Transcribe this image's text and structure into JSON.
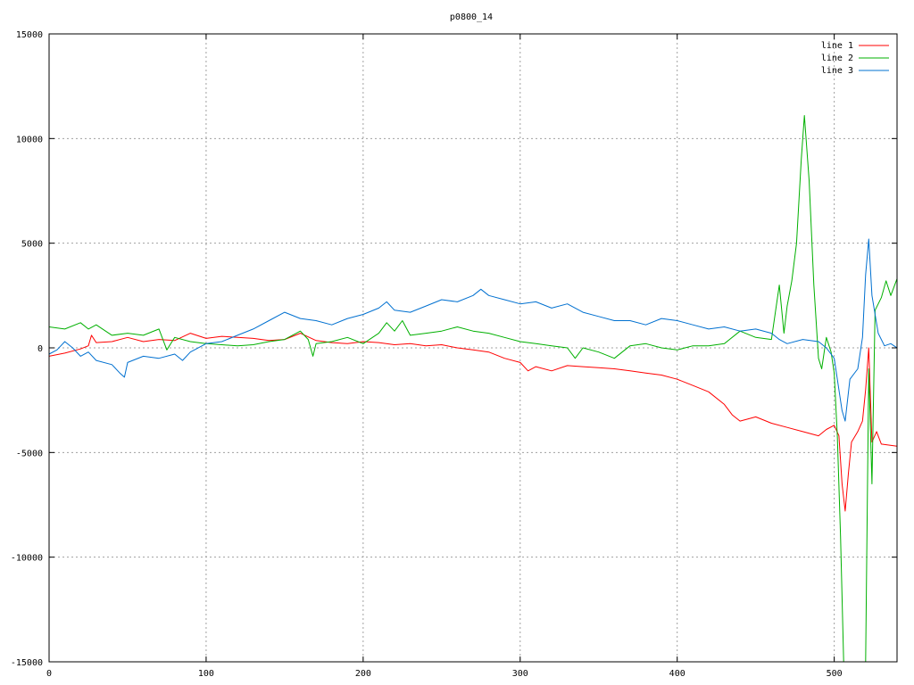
{
  "chart_data": {
    "type": "line",
    "title": "p0800_14",
    "xlabel": "",
    "ylabel": "",
    "xlim": [
      0,
      540
    ],
    "ylim": [
      -15000,
      15000
    ],
    "grid": true,
    "legend_position": "top-right",
    "x_ticks": [
      0,
      100,
      200,
      300,
      400,
      500
    ],
    "y_ticks": [
      -15000,
      -10000,
      -5000,
      0,
      5000,
      10000,
      15000
    ],
    "x_tick_labels": [
      "0",
      "100",
      "200",
      "300",
      "400",
      "500"
    ],
    "y_tick_labels": [
      "-15000",
      "-10000",
      "-5000",
      "0",
      "5000",
      "10000",
      "15000"
    ],
    "series": [
      {
        "name": "line 1",
        "color": "#ff0000",
        "points": [
          [
            0,
            -400
          ],
          [
            10,
            -250
          ],
          [
            20,
            -50
          ],
          [
            25,
            100
          ],
          [
            27,
            600
          ],
          [
            30,
            250
          ],
          [
            40,
            300
          ],
          [
            50,
            500
          ],
          [
            60,
            300
          ],
          [
            70,
            400
          ],
          [
            80,
            350
          ],
          [
            90,
            700
          ],
          [
            100,
            450
          ],
          [
            110,
            550
          ],
          [
            120,
            500
          ],
          [
            130,
            450
          ],
          [
            140,
            350
          ],
          [
            150,
            400
          ],
          [
            160,
            700
          ],
          [
            170,
            350
          ],
          [
            180,
            250
          ],
          [
            190,
            200
          ],
          [
            200,
            300
          ],
          [
            210,
            250
          ],
          [
            220,
            150
          ],
          [
            230,
            200
          ],
          [
            240,
            100
          ],
          [
            250,
            150
          ],
          [
            260,
            0
          ],
          [
            270,
            -100
          ],
          [
            280,
            -200
          ],
          [
            290,
            -500
          ],
          [
            300,
            -700
          ],
          [
            305,
            -1100
          ],
          [
            310,
            -900
          ],
          [
            320,
            -1100
          ],
          [
            330,
            -850
          ],
          [
            340,
            -900
          ],
          [
            350,
            -950
          ],
          [
            360,
            -1000
          ],
          [
            370,
            -1100
          ],
          [
            380,
            -1200
          ],
          [
            390,
            -1300
          ],
          [
            400,
            -1500
          ],
          [
            410,
            -1800
          ],
          [
            420,
            -2100
          ],
          [
            430,
            -2700
          ],
          [
            435,
            -3200
          ],
          [
            440,
            -3500
          ],
          [
            450,
            -3300
          ],
          [
            460,
            -3600
          ],
          [
            470,
            -3800
          ],
          [
            480,
            -4000
          ],
          [
            490,
            -4200
          ],
          [
            495,
            -3900
          ],
          [
            500,
            -3700
          ],
          [
            503,
            -4200
          ],
          [
            505,
            -6500
          ],
          [
            507,
            -7800
          ],
          [
            509,
            -6000
          ],
          [
            511,
            -4500
          ],
          [
            515,
            -4000
          ],
          [
            518,
            -3500
          ],
          [
            520,
            -2000
          ],
          [
            522,
            0
          ],
          [
            524,
            -4500
          ],
          [
            527,
            -4000
          ],
          [
            530,
            -4600
          ],
          [
            540,
            -4700
          ]
        ]
      },
      {
        "name": "line 2",
        "color": "#00b000",
        "points": [
          [
            0,
            1000
          ],
          [
            10,
            900
          ],
          [
            20,
            1200
          ],
          [
            25,
            900
          ],
          [
            30,
            1100
          ],
          [
            40,
            600
          ],
          [
            50,
            700
          ],
          [
            60,
            600
          ],
          [
            70,
            900
          ],
          [
            75,
            -100
          ],
          [
            80,
            500
          ],
          [
            90,
            300
          ],
          [
            100,
            200
          ],
          [
            110,
            150
          ],
          [
            120,
            100
          ],
          [
            130,
            150
          ],
          [
            140,
            300
          ],
          [
            150,
            400
          ],
          [
            160,
            800
          ],
          [
            165,
            400
          ],
          [
            168,
            -400
          ],
          [
            170,
            200
          ],
          [
            180,
            300
          ],
          [
            190,
            500
          ],
          [
            200,
            200
          ],
          [
            210,
            700
          ],
          [
            215,
            1200
          ],
          [
            220,
            800
          ],
          [
            225,
            1300
          ],
          [
            230,
            600
          ],
          [
            240,
            700
          ],
          [
            250,
            800
          ],
          [
            260,
            1000
          ],
          [
            270,
            800
          ],
          [
            280,
            700
          ],
          [
            290,
            500
          ],
          [
            300,
            300
          ],
          [
            310,
            200
          ],
          [
            320,
            100
          ],
          [
            330,
            0
          ],
          [
            335,
            -500
          ],
          [
            340,
            0
          ],
          [
            350,
            -200
          ],
          [
            360,
            -500
          ],
          [
            370,
            100
          ],
          [
            380,
            200
          ],
          [
            390,
            0
          ],
          [
            400,
            -100
          ],
          [
            410,
            100
          ],
          [
            420,
            100
          ],
          [
            430,
            200
          ],
          [
            440,
            800
          ],
          [
            450,
            500
          ],
          [
            460,
            400
          ],
          [
            465,
            3000
          ],
          [
            468,
            700
          ],
          [
            470,
            2000
          ],
          [
            473,
            3200
          ],
          [
            476,
            5000
          ],
          [
            479,
            9000
          ],
          [
            481,
            11100
          ],
          [
            484,
            8000
          ],
          [
            487,
            3000
          ],
          [
            490,
            -500
          ],
          [
            492,
            -1000
          ],
          [
            495,
            500
          ],
          [
            498,
            -200
          ],
          [
            500,
            -1200
          ],
          [
            502,
            -4200
          ],
          [
            504,
            -9000
          ],
          [
            506,
            -15000
          ],
          [
            508,
            -15000
          ],
          [
            512,
            -15000
          ],
          [
            516,
            -15000
          ],
          [
            520,
            -15000
          ],
          [
            522,
            -1000
          ],
          [
            524,
            -6500
          ],
          [
            526,
            1800
          ],
          [
            530,
            2400
          ],
          [
            533,
            3200
          ],
          [
            536,
            2500
          ],
          [
            540,
            3300
          ]
        ]
      },
      {
        "name": "line 3",
        "color": "#0070d0",
        "points": [
          [
            0,
            -300
          ],
          [
            5,
            -100
          ],
          [
            10,
            300
          ],
          [
            15,
            0
          ],
          [
            20,
            -400
          ],
          [
            25,
            -200
          ],
          [
            30,
            -600
          ],
          [
            40,
            -800
          ],
          [
            45,
            -1200
          ],
          [
            48,
            -1400
          ],
          [
            50,
            -700
          ],
          [
            60,
            -400
          ],
          [
            70,
            -500
          ],
          [
            80,
            -300
          ],
          [
            85,
            -600
          ],
          [
            90,
            -200
          ],
          [
            100,
            200
          ],
          [
            110,
            300
          ],
          [
            120,
            600
          ],
          [
            130,
            900
          ],
          [
            140,
            1300
          ],
          [
            150,
            1700
          ],
          [
            160,
            1400
          ],
          [
            170,
            1300
          ],
          [
            180,
            1100
          ],
          [
            190,
            1400
          ],
          [
            200,
            1600
          ],
          [
            210,
            1900
          ],
          [
            215,
            2200
          ],
          [
            220,
            1800
          ],
          [
            230,
            1700
          ],
          [
            240,
            2000
          ],
          [
            250,
            2300
          ],
          [
            260,
            2200
          ],
          [
            270,
            2500
          ],
          [
            275,
            2800
          ],
          [
            280,
            2500
          ],
          [
            290,
            2300
          ],
          [
            300,
            2100
          ],
          [
            310,
            2200
          ],
          [
            320,
            1900
          ],
          [
            330,
            2100
          ],
          [
            340,
            1700
          ],
          [
            350,
            1500
          ],
          [
            360,
            1300
          ],
          [
            370,
            1300
          ],
          [
            380,
            1100
          ],
          [
            390,
            1400
          ],
          [
            400,
            1300
          ],
          [
            410,
            1100
          ],
          [
            420,
            900
          ],
          [
            430,
            1000
          ],
          [
            440,
            800
          ],
          [
            450,
            900
          ],
          [
            460,
            700
          ],
          [
            465,
            400
          ],
          [
            470,
            200
          ],
          [
            480,
            400
          ],
          [
            490,
            300
          ],
          [
            495,
            0
          ],
          [
            500,
            -500
          ],
          [
            505,
            -3000
          ],
          [
            507,
            -3500
          ],
          [
            510,
            -1500
          ],
          [
            515,
            -1000
          ],
          [
            518,
            500
          ],
          [
            520,
            3500
          ],
          [
            522,
            5200
          ],
          [
            524,
            2500
          ],
          [
            528,
            700
          ],
          [
            532,
            100
          ],
          [
            536,
            200
          ],
          [
            540,
            0
          ]
        ]
      }
    ]
  }
}
